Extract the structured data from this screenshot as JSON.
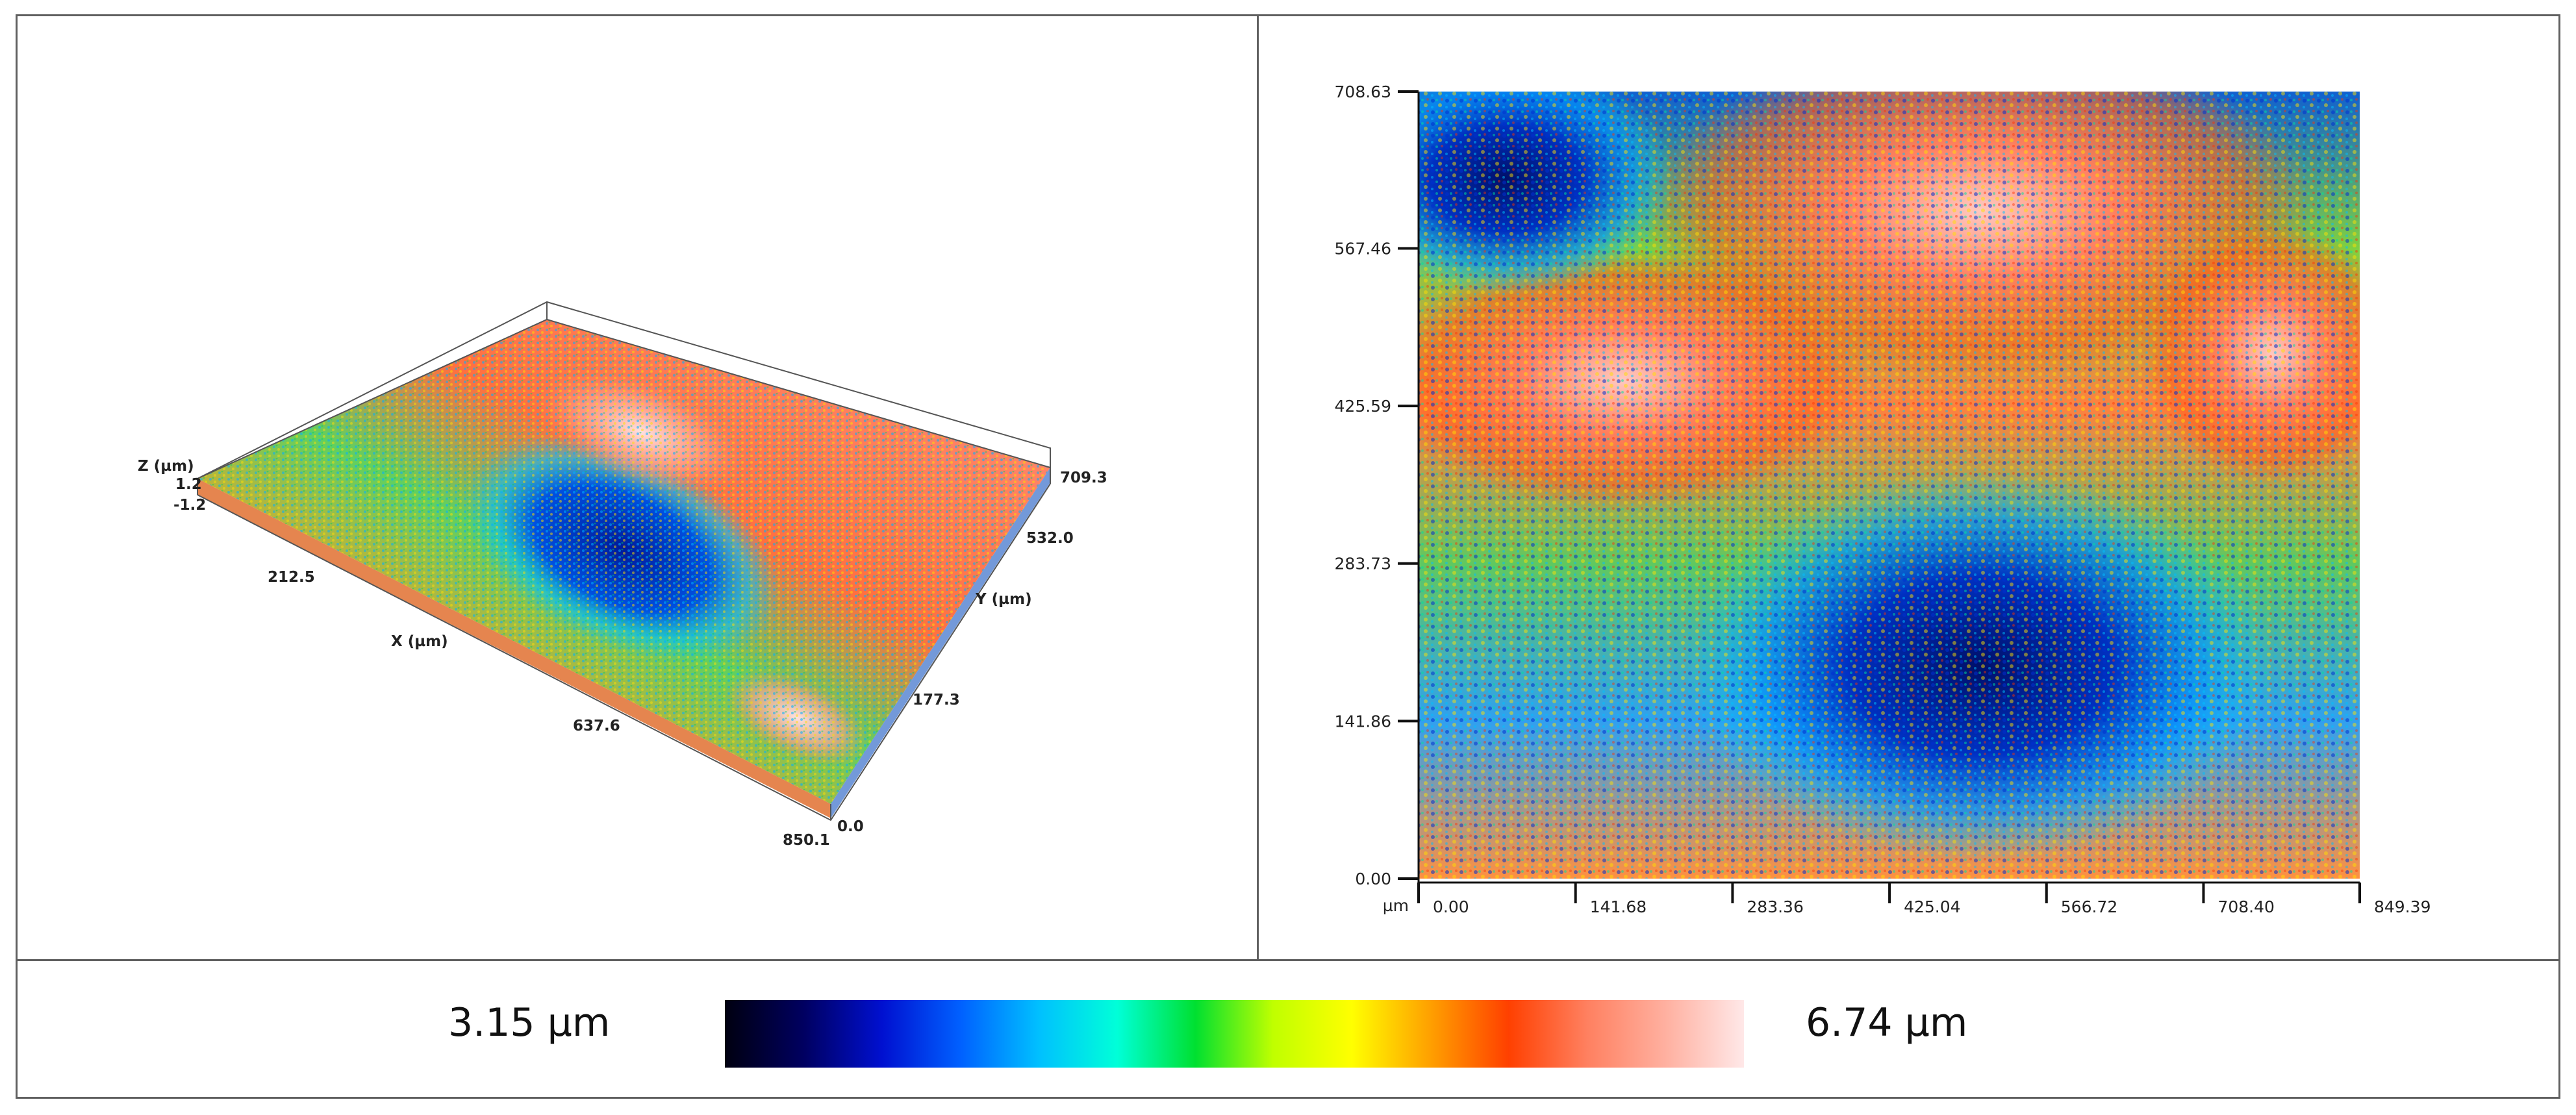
{
  "colors": {
    "colormap": [
      "#000010",
      "#000060",
      "#0010d0",
      "#0060ff",
      "#00c0ff",
      "#00ffd8",
      "#00e030",
      "#c0ff00",
      "#ffff00",
      "#ffa000",
      "#ff4000",
      "#ff8060",
      "#ffb0a0",
      "#ffe8e8"
    ]
  },
  "left_panel": {
    "axes": {
      "z_label": "Z (µm)",
      "z_ticks": [
        "1.2",
        "-1.2"
      ],
      "x_label": "X (µm)",
      "x_ticks": [
        "212.5",
        "637.6",
        "850.1"
      ],
      "y_label": "Y (µm)",
      "y_ticks": [
        "709.3",
        "532.0",
        "177.3",
        "0.0"
      ]
    }
  },
  "chart_data": {
    "type": "heatmap",
    "x_unit": "µm",
    "xticks": [
      "0.00",
      "141.68",
      "283.36",
      "425.04",
      "566.72",
      "708.40",
      "849.39"
    ],
    "yticks": [
      "708.63",
      "567.46",
      "425.59",
      "283.73",
      "141.86",
      "0.00"
    ],
    "xlim": [
      0,
      849.39
    ],
    "ylim": [
      0,
      708.63
    ],
    "colorbar": {
      "min_label": "3.15 µm",
      "max_label": "6.74 µm",
      "min": 3.15,
      "max": 6.74
    }
  }
}
